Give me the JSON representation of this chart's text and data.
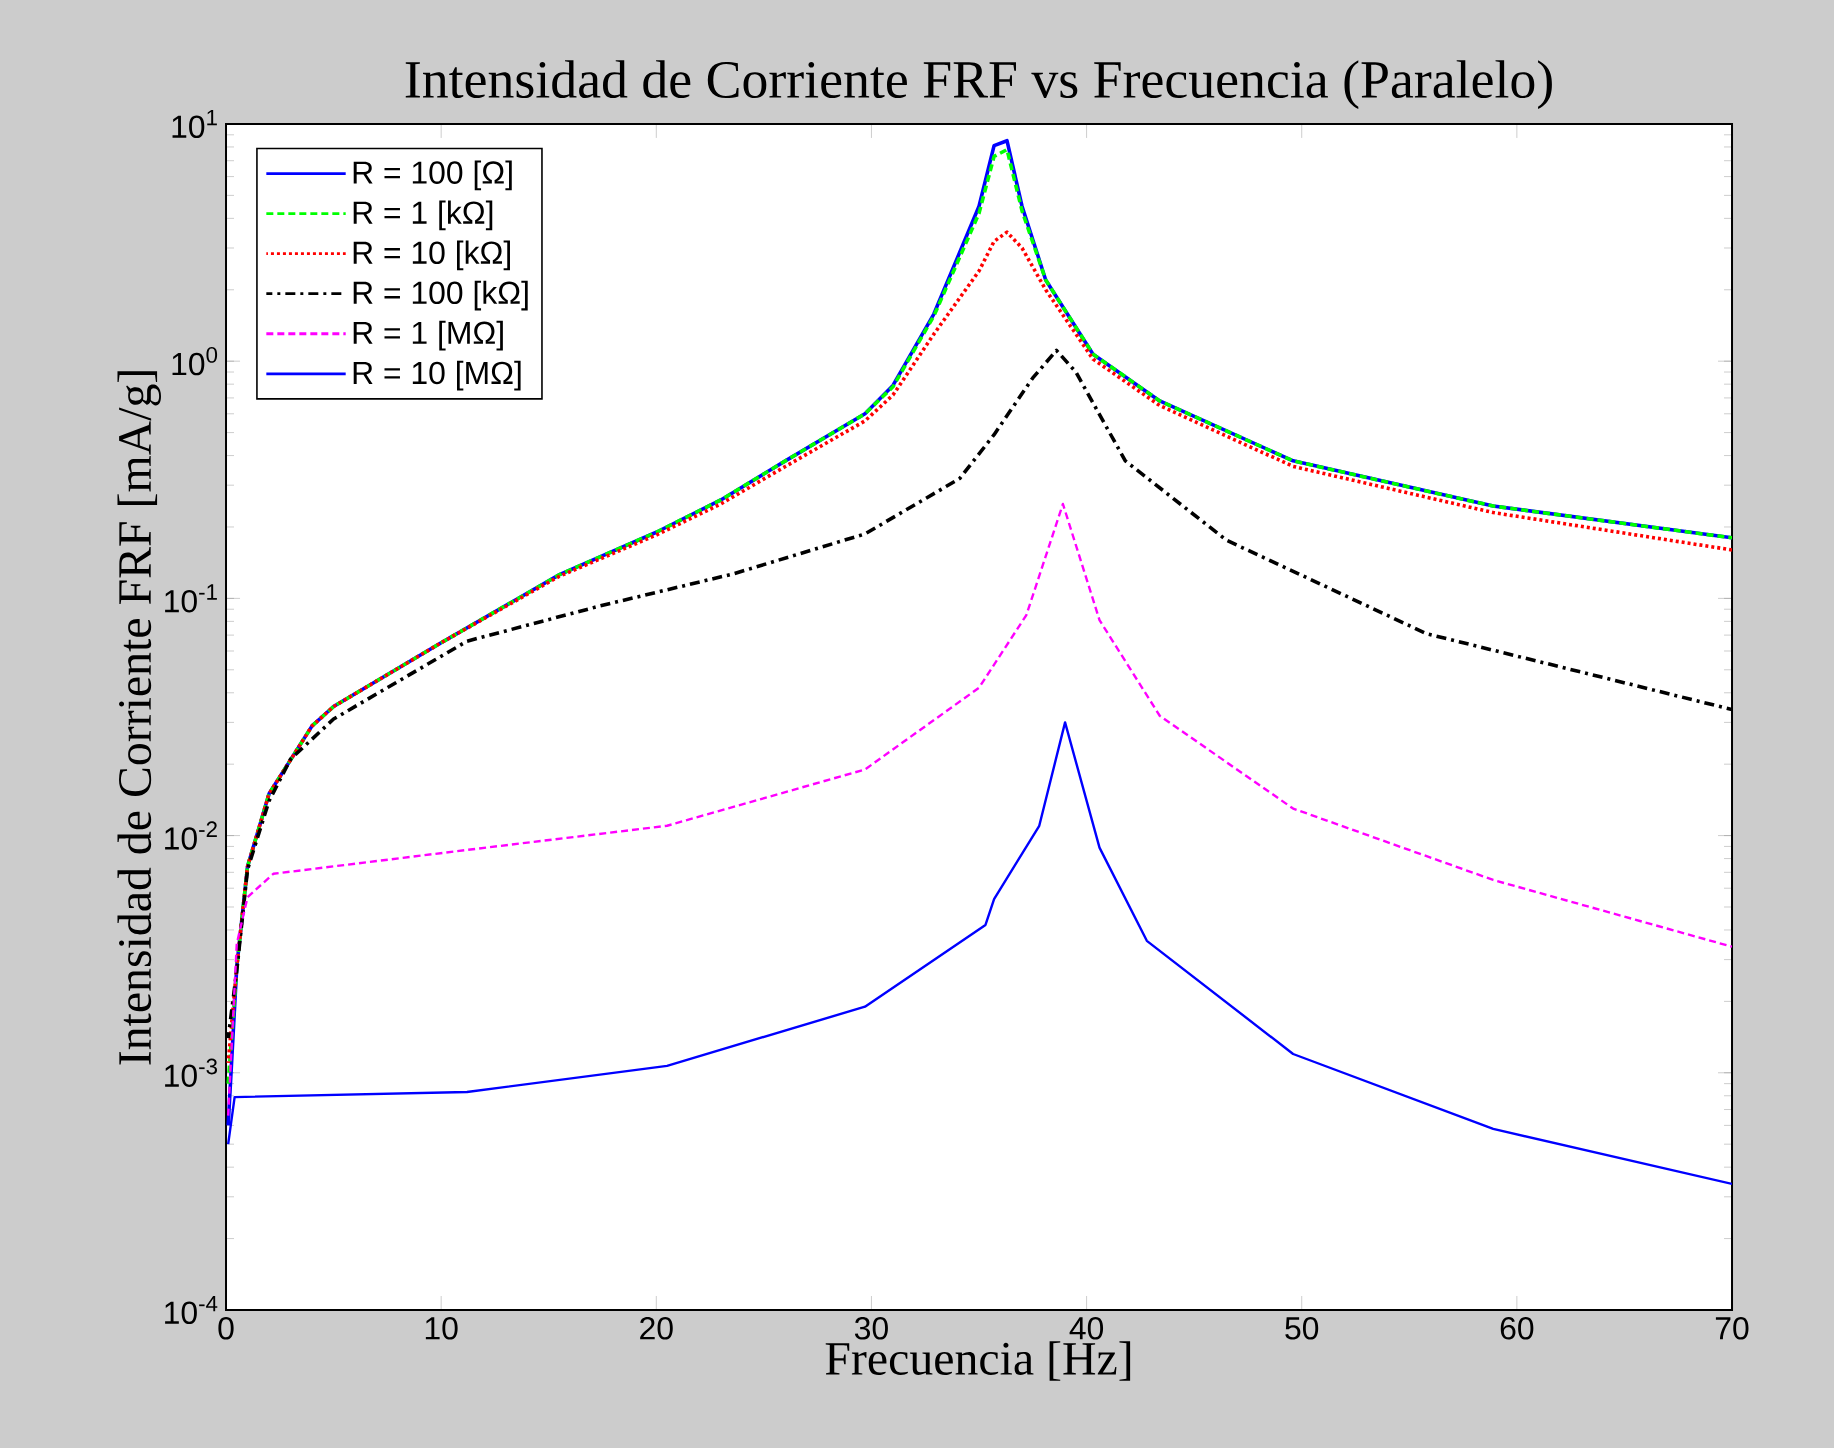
{
  "chart_data": {
    "type": "line",
    "title": "Intensidad de Corriente FRF vs Frecuencia (Paralelo)",
    "xlabel": "Frecuencia [Hz]",
    "ylabel": "Intensidad de Corriente FRF [mA/g]",
    "log": "y",
    "xlim": [
      0,
      70
    ],
    "ylim": [
      0.0001,
      10
    ],
    "xticks": [
      0,
      10,
      20,
      30,
      40,
      50,
      60,
      70
    ],
    "yticks": [
      {
        "value": 0.0001,
        "label": "10$^{-4}$"
      },
      {
        "value": 0.001,
        "label": "10$^{-3}$"
      },
      {
        "value": 0.01,
        "label": "10$^{-2}$"
      },
      {
        "value": 0.1,
        "label": "10$^{-1}$"
      },
      {
        "value": 1,
        "label": "10$^{0}$"
      },
      {
        "value": 10,
        "label": "10$^{1}$"
      }
    ],
    "legend": "top left",
    "series": [
      {
        "name": "R = 100 [Ω]",
        "color": "#0000ff",
        "line_style": "solid",
        "x": [
          0.1,
          0.5,
          1,
          2,
          4,
          5,
          10,
          15.5,
          20,
          23,
          26,
          29.7,
          31,
          32.9,
          35,
          35.7,
          36.3,
          37,
          38.1,
          40.3,
          43.4,
          49.6,
          58.9,
          70
        ],
        "values": [
          0.0006,
          0.0028,
          0.0074,
          0.015,
          0.029,
          0.035,
          0.065,
          0.126,
          0.19,
          0.26,
          0.38,
          0.6,
          0.79,
          1.58,
          4.5,
          8.1,
          8.5,
          4.5,
          2.2,
          1.07,
          0.68,
          0.38,
          0.245,
          0.18
        ]
      },
      {
        "name": "R = 1 [kΩ]",
        "color": "#00ff00",
        "line_style": "dashed",
        "x": [
          0.1,
          0.5,
          1,
          2,
          4,
          5,
          10,
          15.5,
          20,
          23,
          26,
          29.7,
          31,
          32.9,
          35,
          35.7,
          36.3,
          37,
          38.1,
          40.3,
          43.4,
          49.6,
          58.9,
          70
        ],
        "values": [
          0.0009,
          0.0028,
          0.0074,
          0.015,
          0.029,
          0.035,
          0.065,
          0.126,
          0.19,
          0.26,
          0.38,
          0.6,
          0.78,
          1.55,
          4.2,
          7.3,
          7.8,
          4.3,
          2.2,
          1.07,
          0.68,
          0.38,
          0.245,
          0.18
        ]
      },
      {
        "name": "R = 10 [kΩ]",
        "color": "#ff0000",
        "line_style": "dotted",
        "x": [
          0.1,
          0.5,
          1,
          2,
          4,
          5,
          10,
          15.5,
          20,
          23,
          26,
          29.7,
          31,
          32.9,
          35,
          35.7,
          36.3,
          37,
          38.1,
          40.3,
          43.4,
          49.6,
          58.9,
          70
        ],
        "values": [
          0.0011,
          0.0028,
          0.0074,
          0.015,
          0.029,
          0.035,
          0.065,
          0.124,
          0.185,
          0.25,
          0.36,
          0.56,
          0.72,
          1.3,
          2.4,
          3.2,
          3.5,
          3.0,
          2.0,
          1.02,
          0.65,
          0.36,
          0.23,
          0.16
        ]
      },
      {
        "name": "R = 100 [kΩ]",
        "color": "#000000",
        "line_style": "dashdot",
        "x": [
          0.1,
          0.5,
          1,
          2,
          3,
          5,
          11.2,
          17.4,
          23.6,
          29.7,
          34.1,
          35.7,
          37.5,
          38.6,
          39.5,
          41.8,
          46.5,
          55.8,
          70
        ],
        "values": [
          0.0014,
          0.0027,
          0.0072,
          0.014,
          0.021,
          0.031,
          0.066,
          0.093,
          0.127,
          0.187,
          0.32,
          0.49,
          0.85,
          1.11,
          0.9,
          0.38,
          0.176,
          0.071,
          0.034
        ]
      },
      {
        "name": "R = 1 [MΩ]",
        "color": "#ff00ff",
        "line_style": "dashed",
        "x": [
          0.1,
          0.5,
          1,
          2.2,
          11.2,
          20.5,
          29.7,
          35,
          37.2,
          38.9,
          40.6,
          43.4,
          49.6,
          58.9,
          70
        ],
        "values": [
          0.00066,
          0.0035,
          0.0055,
          0.0069,
          0.0087,
          0.011,
          0.019,
          0.042,
          0.085,
          0.25,
          0.081,
          0.032,
          0.013,
          0.0065,
          0.0034
        ]
      },
      {
        "name": "R = 10 [MΩ]",
        "color": "#0000ff",
        "line_style": "solid",
        "x": [
          0.1,
          0.4,
          11.2,
          20.5,
          29.7,
          35.3,
          35.7,
          37.8,
          39,
          40.6,
          42.8,
          49.6,
          58.9,
          70
        ],
        "values": [
          0.0005,
          0.00079,
          0.00083,
          0.00107,
          0.0019,
          0.0042,
          0.0054,
          0.011,
          0.03,
          0.0089,
          0.0036,
          0.0012,
          0.00058,
          0.00034
        ]
      }
    ]
  }
}
